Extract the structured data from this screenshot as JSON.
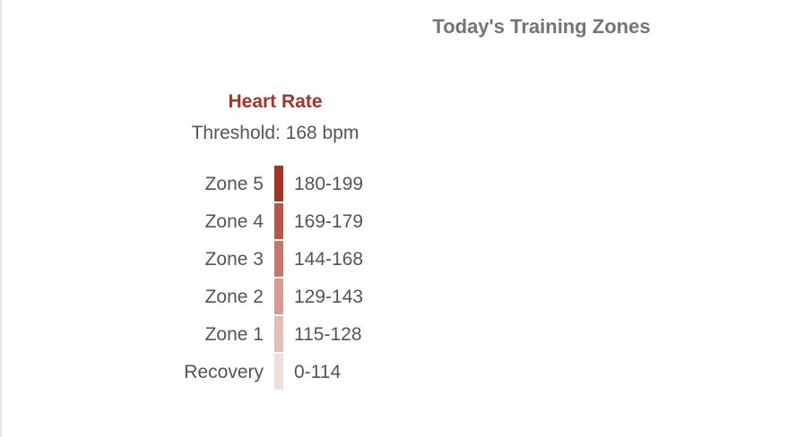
{
  "header": {
    "title": "Today's Training Zones"
  },
  "panel": {
    "heading": "Heart Rate",
    "threshold": "Threshold: 168 bpm",
    "zones": [
      {
        "label": "Zone 5",
        "range": "180-199",
        "color": "#a83224"
      },
      {
        "label": "Zone 4",
        "range": "169-179",
        "color": "#b9554b"
      },
      {
        "label": "Zone 3",
        "range": "144-168",
        "color": "#c8776f"
      },
      {
        "label": "Zone 2",
        "range": "129-143",
        "color": "#d79a94"
      },
      {
        "label": "Zone 1",
        "range": "115-128",
        "color": "#e6bdb8"
      },
      {
        "label": "Recovery",
        "range": "0-114",
        "color": "#f1dedb"
      }
    ]
  }
}
